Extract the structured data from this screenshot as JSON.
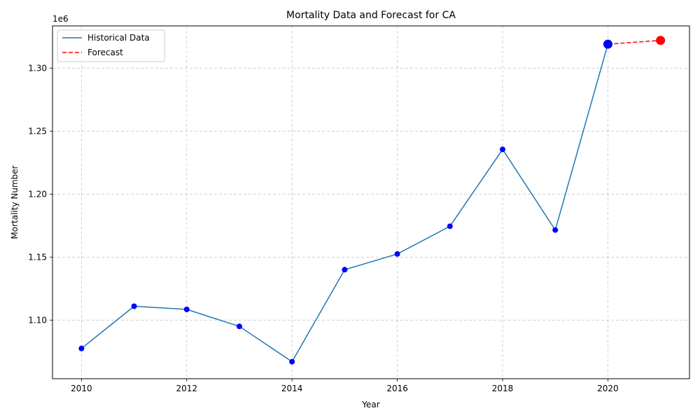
{
  "chart_data": {
    "type": "line",
    "title": "Mortality Data and Forecast for CA",
    "xlabel": "Year",
    "ylabel": "Mortality Number",
    "y_offset_label": "1e6",
    "xlim": [
      2009.45,
      2021.55
    ],
    "ylim": [
      1.0535,
      1.3335
    ],
    "x_ticks": [
      2010,
      2012,
      2014,
      2016,
      2018,
      2020
    ],
    "y_ticks": [
      1.1,
      1.15,
      1.2,
      1.25,
      1.3
    ],
    "y_tick_labels": [
      "1.10",
      "1.15",
      "1.20",
      "1.25",
      "1.30"
    ],
    "grid": true,
    "legend_position": "top-left",
    "series": [
      {
        "name": "Historical Data",
        "color": "#1f77b4",
        "line_style": "solid",
        "marker_color": "#0000ff",
        "x": [
          2010,
          2011,
          2012,
          2013,
          2014,
          2015,
          2016,
          2017,
          2018,
          2019,
          2020
        ],
        "y": [
          1.0775,
          1.111,
          1.1085,
          1.095,
          1.067,
          1.14,
          1.1525,
          1.1745,
          1.2355,
          1.1715,
          1.319
        ]
      },
      {
        "name": "Forecast",
        "color": "#ff0000",
        "line_style": "dashed",
        "x": [
          2020,
          2021
        ],
        "y": [
          1.319,
          1.322
        ]
      }
    ],
    "highlight_points": [
      {
        "x": 2020,
        "y": 1.319,
        "color": "#0000ff"
      },
      {
        "x": 2021,
        "y": 1.322,
        "color": "#ff0000"
      }
    ]
  }
}
